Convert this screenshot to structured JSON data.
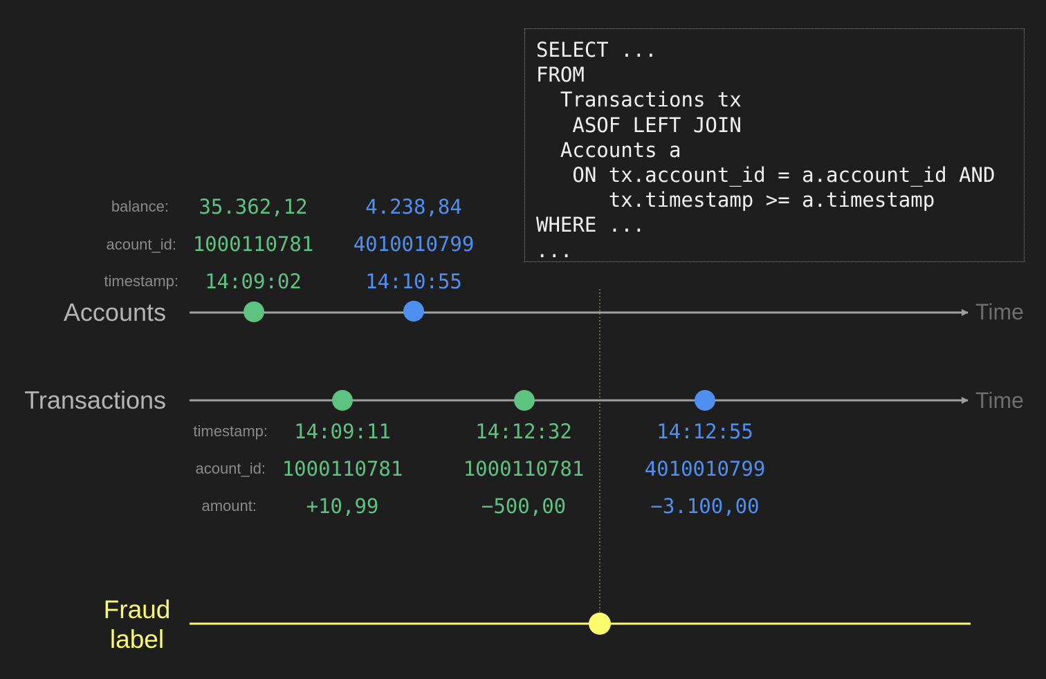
{
  "sql": {
    "lines": [
      "SELECT ...",
      "FROM",
      "  Transactions tx",
      "   ASOF LEFT JOIN",
      "  Accounts a",
      "   ON tx.account_id = a.account_id AND",
      "      tx.timestamp >= a.timestamp",
      "WHERE ...",
      "..."
    ]
  },
  "axis_label": "Time",
  "colors": {
    "green": "#5ec281",
    "blue": "#4f8ff0",
    "yellow": "#fbfb6e",
    "axis": "#a0a0a0",
    "background": "#1e1e1e"
  },
  "accounts": {
    "title": "Accounts",
    "labels": {
      "balance": "balance:",
      "account_id": "acount_id:",
      "timestamp": "timestamp:"
    },
    "events": [
      {
        "color": "green",
        "balance": "35.362,12",
        "account_id": "1000110781",
        "timestamp": "14:09:02"
      },
      {
        "color": "blue",
        "balance": "4.238,84",
        "account_id": "4010010799",
        "timestamp": "14:10:55"
      }
    ]
  },
  "transactions": {
    "title": "Transactions",
    "labels": {
      "timestamp": "timestamp:",
      "account_id": "acount_id:",
      "amount": "amount:"
    },
    "events": [
      {
        "color": "green",
        "timestamp": "14:09:11",
        "account_id": "1000110781",
        "amount": "+10,99"
      },
      {
        "color": "green",
        "timestamp": "14:12:32",
        "account_id": "1000110781",
        "amount": "−500,00"
      },
      {
        "color": "blue",
        "timestamp": "14:12:55",
        "account_id": "4010010799",
        "amount": "−3.100,00"
      }
    ]
  },
  "fraud": {
    "title_line1": "Fraud",
    "title_line2": "label"
  }
}
